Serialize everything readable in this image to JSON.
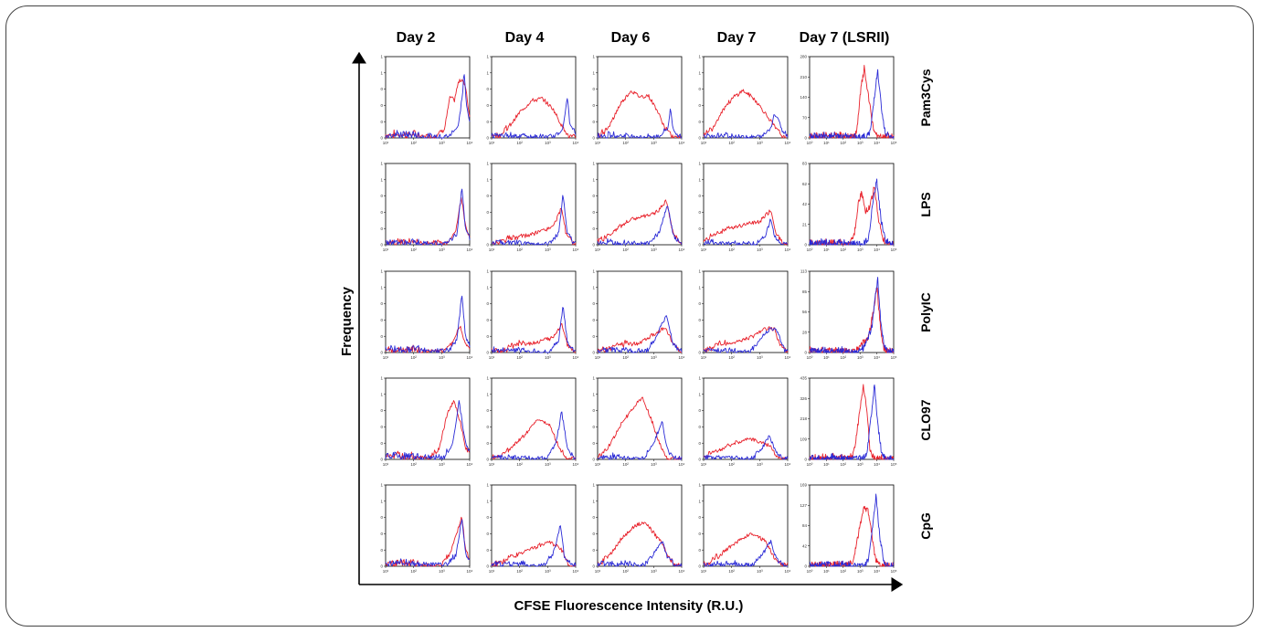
{
  "chart_data": {
    "type": "line",
    "xlabel": "CFSE Fluorescence Intensity (R.U.)",
    "ylabel": "Frequency",
    "columns": [
      "Day 2",
      "Day 4",
      "Day 6",
      "Day 7",
      "Day 7 (LSRII)"
    ],
    "rows": [
      "Pam3Cys",
      "LPS",
      "PolyIC",
      "CLO97",
      "CpG"
    ],
    "x_scale": "log",
    "series_colors": {
      "red": "#e8202a",
      "blue": "#2a2ad6"
    },
    "standard_xticks": [
      "10¹",
      "10²",
      "10³",
      "10⁴"
    ],
    "lsrii_xticks": [
      "10⁰",
      "10¹",
      "10²",
      "10³",
      "10⁴",
      "10⁵"
    ],
    "standard_ylim": [
      0,
      1
    ],
    "standard_yticks": [
      "0",
      "0",
      "0",
      "0",
      "1",
      "1"
    ],
    "lsrii_yticks": [
      [
        "0",
        "70",
        "140",
        "210",
        "280"
      ],
      [
        "0",
        "21",
        "42",
        "62",
        "83"
      ],
      [
        "0",
        "28",
        "56",
        "85",
        "113"
      ],
      [
        "0",
        "109",
        "218",
        "326",
        "435"
      ],
      [
        "0",
        "42",
        "84",
        "127",
        "169"
      ]
    ],
    "shapes": {
      "Pam3Cys": [
        {
          "red": [
            [
              3.1,
              0.1
            ],
            [
              3.3,
              0.5
            ],
            [
              3.45,
              0.45
            ],
            [
              3.6,
              0.68
            ],
            [
              3.75,
              0.72
            ],
            [
              3.85,
              0.62
            ]
          ],
          "blue": [
            [
              3.6,
              0.15
            ],
            [
              3.75,
              0.55
            ],
            [
              3.8,
              0.82
            ],
            [
              3.88,
              0.4
            ]
          ],
          "noise": 0.08
        },
        {
          "red": [
            [
              1.6,
              0.12
            ],
            [
              2.0,
              0.3
            ],
            [
              2.4,
              0.45
            ],
            [
              2.8,
              0.48
            ],
            [
              3.2,
              0.35
            ],
            [
              3.5,
              0.15
            ]
          ],
          "blue": [
            [
              3.55,
              0.1
            ],
            [
              3.7,
              0.5
            ],
            [
              3.8,
              0.15
            ]
          ],
          "noise": 0.06
        },
        {
          "red": [
            [
              1.4,
              0.12
            ],
            [
              1.8,
              0.4
            ],
            [
              2.2,
              0.58
            ],
            [
              2.5,
              0.5
            ],
            [
              2.8,
              0.52
            ],
            [
              3.1,
              0.35
            ],
            [
              3.4,
              0.12
            ]
          ],
          "blue": [
            [
              3.5,
              0.1
            ],
            [
              3.6,
              0.36
            ],
            [
              3.7,
              0.08
            ]
          ],
          "noise": 0.06
        },
        {
          "red": [
            [
              1.3,
              0.1
            ],
            [
              1.7,
              0.35
            ],
            [
              2.1,
              0.5
            ],
            [
              2.4,
              0.58
            ],
            [
              2.8,
              0.48
            ],
            [
              3.2,
              0.3
            ],
            [
              3.6,
              0.1
            ]
          ],
          "blue": [
            [
              3.4,
              0.12
            ],
            [
              3.5,
              0.28
            ],
            [
              3.65,
              0.25
            ],
            [
              3.8,
              0.08
            ]
          ],
          "noise": 0.05
        },
        {
          "red": [
            [
              2.8,
              0.05
            ],
            [
              3.05,
              0.6
            ],
            [
              3.25,
              0.85
            ],
            [
              3.5,
              0.5
            ],
            [
              3.8,
              0.1
            ]
          ],
          "blue": [
            [
              3.6,
              0.05
            ],
            [
              3.9,
              0.6
            ],
            [
              4.05,
              0.82
            ],
            [
              4.3,
              0.3
            ],
            [
              4.5,
              0.05
            ]
          ],
          "noise": 0.04
        }
      ],
      "LPS": [
        {
          "red": [
            [
              3.5,
              0.15
            ],
            [
              3.7,
              0.58
            ],
            [
              3.85,
              0.22
            ]
          ],
          "blue": [
            [
              3.55,
              0.12
            ],
            [
              3.72,
              0.7
            ],
            [
              3.85,
              0.2
            ]
          ],
          "noise": 0.07
        },
        {
          "red": [
            [
              1.6,
              0.05
            ],
            [
              2.4,
              0.12
            ],
            [
              3.2,
              0.22
            ],
            [
              3.5,
              0.45
            ],
            [
              3.65,
              0.15
            ]
          ],
          "blue": [
            [
              3.4,
              0.15
            ],
            [
              3.55,
              0.62
            ],
            [
              3.7,
              0.15
            ]
          ],
          "noise": 0.05
        },
        {
          "red": [
            [
              1.3,
              0.08
            ],
            [
              1.8,
              0.22
            ],
            [
              2.3,
              0.32
            ],
            [
              2.8,
              0.35
            ],
            [
              3.2,
              0.42
            ],
            [
              3.45,
              0.55
            ],
            [
              3.7,
              0.12
            ]
          ],
          "blue": [
            [
              3.2,
              0.15
            ],
            [
              3.5,
              0.5
            ],
            [
              3.7,
              0.1
            ]
          ],
          "noise": 0.06
        },
        {
          "red": [
            [
              1.3,
              0.1
            ],
            [
              1.9,
              0.2
            ],
            [
              2.5,
              0.25
            ],
            [
              3.0,
              0.28
            ],
            [
              3.4,
              0.42
            ],
            [
              3.6,
              0.12
            ]
          ],
          "blue": [
            [
              3.2,
              0.1
            ],
            [
              3.4,
              0.32
            ],
            [
              3.55,
              0.08
            ]
          ],
          "noise": 0.05
        },
        {
          "red": [
            [
              2.6,
              0.05
            ],
            [
              2.9,
              0.5
            ],
            [
              3.1,
              0.65
            ],
            [
              3.35,
              0.4
            ],
            [
              3.6,
              0.48
            ],
            [
              3.85,
              0.72
            ],
            [
              4.1,
              0.3
            ],
            [
              4.4,
              0.05
            ]
          ],
          "blue": [
            [
              3.5,
              0.05
            ],
            [
              3.8,
              0.6
            ],
            [
              4.0,
              0.78
            ],
            [
              4.25,
              0.3
            ],
            [
              4.5,
              0.05
            ]
          ],
          "noise": 0.04
        }
      ],
      "PolyIC": [
        {
          "red": [
            [
              3.4,
              0.12
            ],
            [
              3.65,
              0.32
            ],
            [
              3.8,
              0.15
            ]
          ],
          "blue": [
            [
              3.55,
              0.15
            ],
            [
              3.72,
              0.72
            ],
            [
              3.85,
              0.2
            ]
          ],
          "noise": 0.08
        },
        {
          "red": [
            [
              1.8,
              0.08
            ],
            [
              2.6,
              0.12
            ],
            [
              3.2,
              0.18
            ],
            [
              3.5,
              0.35
            ],
            [
              3.7,
              0.1
            ]
          ],
          "blue": [
            [
              3.4,
              0.15
            ],
            [
              3.55,
              0.58
            ],
            [
              3.7,
              0.12
            ]
          ],
          "noise": 0.05
        },
        {
          "red": [
            [
              1.6,
              0.06
            ],
            [
              2.4,
              0.1
            ],
            [
              3.0,
              0.22
            ],
            [
              3.4,
              0.3
            ],
            [
              3.7,
              0.1
            ]
          ],
          "blue": [
            [
              3.1,
              0.2
            ],
            [
              3.45,
              0.45
            ],
            [
              3.7,
              0.1
            ]
          ],
          "noise": 0.06
        },
        {
          "red": [
            [
              1.5,
              0.08
            ],
            [
              2.2,
              0.12
            ],
            [
              2.8,
              0.2
            ],
            [
              3.2,
              0.3
            ],
            [
              3.55,
              0.28
            ],
            [
              3.7,
              0.1
            ]
          ],
          "blue": [
            [
              3.0,
              0.15
            ],
            [
              3.4,
              0.3
            ],
            [
              3.65,
              0.25
            ]
          ],
          "noise": 0.05
        },
        {
          "red": [
            [
              3.0,
              0.05
            ],
            [
              3.5,
              0.2
            ],
            [
              3.85,
              0.55
            ],
            [
              4.0,
              0.82
            ],
            [
              4.2,
              0.35
            ],
            [
              4.4,
              0.05
            ]
          ],
          "blue": [
            [
              3.2,
              0.05
            ],
            [
              3.7,
              0.3
            ],
            [
              3.95,
              0.75
            ],
            [
              4.05,
              0.9
            ],
            [
              4.25,
              0.35
            ],
            [
              4.45,
              0.05
            ]
          ],
          "noise": 0.04
        }
      ],
      "CLO97": [
        {
          "red": [
            [
              2.9,
              0.1
            ],
            [
              3.2,
              0.55
            ],
            [
              3.45,
              0.72
            ],
            [
              3.7,
              0.4
            ],
            [
              3.85,
              0.15
            ]
          ],
          "blue": [
            [
              3.4,
              0.2
            ],
            [
              3.62,
              0.7
            ],
            [
              3.85,
              0.2
            ]
          ],
          "noise": 0.08
        },
        {
          "red": [
            [
              1.6,
              0.1
            ],
            [
              2.2,
              0.3
            ],
            [
              2.7,
              0.5
            ],
            [
              3.1,
              0.4
            ],
            [
              3.4,
              0.15
            ]
          ],
          "blue": [
            [
              3.3,
              0.2
            ],
            [
              3.5,
              0.58
            ],
            [
              3.7,
              0.15
            ]
          ],
          "noise": 0.05
        },
        {
          "red": [
            [
              1.4,
              0.15
            ],
            [
              1.9,
              0.45
            ],
            [
              2.3,
              0.65
            ],
            [
              2.6,
              0.75
            ],
            [
              2.9,
              0.5
            ],
            [
              3.2,
              0.2
            ]
          ],
          "blue": [
            [
              3.0,
              0.2
            ],
            [
              3.3,
              0.45
            ],
            [
              3.5,
              0.1
            ]
          ],
          "noise": 0.06
        },
        {
          "red": [
            [
              1.4,
              0.08
            ],
            [
              2.0,
              0.18
            ],
            [
              2.5,
              0.25
            ],
            [
              3.0,
              0.22
            ],
            [
              3.4,
              0.15
            ]
          ],
          "blue": [
            [
              3.1,
              0.15
            ],
            [
              3.35,
              0.3
            ],
            [
              3.55,
              0.1
            ]
          ],
          "noise": 0.05
        },
        {
          "red": [
            [
              2.6,
              0.05
            ],
            [
              3.0,
              0.6
            ],
            [
              3.2,
              0.9
            ],
            [
              3.4,
              0.6
            ],
            [
              3.6,
              0.1
            ]
          ],
          "blue": [
            [
              3.4,
              0.05
            ],
            [
              3.7,
              0.6
            ],
            [
              3.85,
              0.9
            ],
            [
              4.1,
              0.35
            ],
            [
              4.3,
              0.05
            ]
          ],
          "noise": 0.04
        }
      ],
      "CpG": [
        {
          "red": [
            [
              3.3,
              0.15
            ],
            [
              3.55,
              0.4
            ],
            [
              3.72,
              0.62
            ],
            [
              3.85,
              0.2
            ]
          ],
          "blue": [
            [
              3.5,
              0.12
            ],
            [
              3.72,
              0.58
            ],
            [
              3.85,
              0.15
            ]
          ],
          "noise": 0.07
        },
        {
          "red": [
            [
              1.6,
              0.08
            ],
            [
              2.2,
              0.18
            ],
            [
              2.7,
              0.25
            ],
            [
              3.1,
              0.3
            ],
            [
              3.5,
              0.2
            ]
          ],
          "blue": [
            [
              3.2,
              0.15
            ],
            [
              3.45,
              0.5
            ],
            [
              3.6,
              0.1
            ]
          ],
          "noise": 0.05
        },
        {
          "red": [
            [
              1.4,
              0.12
            ],
            [
              1.9,
              0.35
            ],
            [
              2.3,
              0.48
            ],
            [
              2.7,
              0.55
            ],
            [
              3.0,
              0.4
            ],
            [
              3.3,
              0.28
            ],
            [
              3.5,
              0.12
            ]
          ],
          "blue": [
            [
              3.0,
              0.15
            ],
            [
              3.3,
              0.3
            ],
            [
              3.5,
              0.1
            ]
          ],
          "noise": 0.06
        },
        {
          "red": [
            [
              1.5,
              0.1
            ],
            [
              2.0,
              0.25
            ],
            [
              2.4,
              0.35
            ],
            [
              2.8,
              0.4
            ],
            [
              3.2,
              0.3
            ],
            [
              3.5,
              0.12
            ]
          ],
          "blue": [
            [
              3.1,
              0.15
            ],
            [
              3.4,
              0.3
            ],
            [
              3.6,
              0.08
            ]
          ],
          "noise": 0.05
        },
        {
          "red": [
            [
              2.6,
              0.05
            ],
            [
              2.95,
              0.45
            ],
            [
              3.2,
              0.72
            ],
            [
              3.45,
              0.7
            ],
            [
              3.7,
              0.4
            ],
            [
              3.9,
              0.1
            ]
          ],
          "blue": [
            [
              3.5,
              0.05
            ],
            [
              3.8,
              0.6
            ],
            [
              3.95,
              0.88
            ],
            [
              4.15,
              0.4
            ],
            [
              4.4,
              0.05
            ]
          ],
          "noise": 0.04
        }
      ]
    }
  }
}
